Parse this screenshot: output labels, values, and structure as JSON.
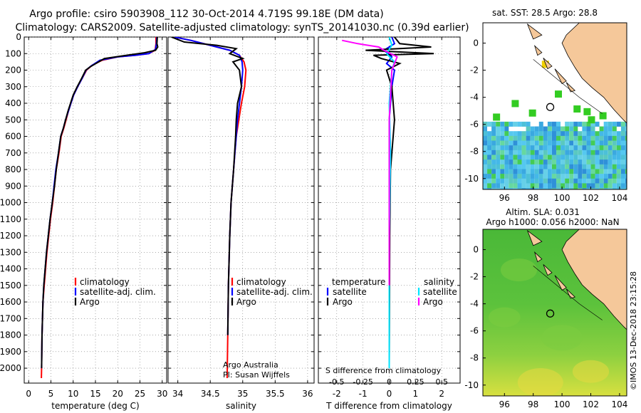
{
  "title": {
    "line1": "Argo profile: csiro 5903908_112 30-Oct-2014 4.719S 99.18E (DM data)",
    "line2": "Climatology: CARS2009. Satellite-adjusted climatology: synTS_20141030.nc (0.39d earlier)"
  },
  "credit": {
    "line1": "Argo Australia",
    "line2": "PI: Susan Wijffels",
    "footer": "©IMOS 13-Dec-2018 23:15:28"
  },
  "colors": {
    "climatology": "#ff0000",
    "satellite": "#0000ff",
    "argo": "#000000",
    "salinity_satellite": "#00e5ff",
    "salinity_argo": "#ff00ff",
    "land": "#f5c89a",
    "sea_green": "#44cc33"
  },
  "chart_data": [
    {
      "id": "temperature",
      "type": "line",
      "xlabel": "temperature (deg C)",
      "ylabel": "",
      "xlim": [
        -1,
        31
      ],
      "ylim": [
        2090,
        0
      ],
      "xticks": [
        0,
        5,
        10,
        15,
        20,
        25,
        30
      ],
      "yticks": [
        0,
        100,
        200,
        300,
        400,
        500,
        600,
        700,
        800,
        900,
        1000,
        1100,
        1200,
        1300,
        1400,
        1500,
        1600,
        1700,
        1800,
        1900,
        2000
      ],
      "legend": [
        "climatology",
        "satellite-adj. clim.",
        "Argo"
      ],
      "series": [
        {
          "name": "climatology",
          "color": "#ff0000",
          "x": [
            28.6,
            28.6,
            28.4,
            27,
            24,
            20,
            16.5,
            14.3,
            13,
            12,
            11,
            10.1,
            9.5,
            8.9,
            8.4,
            7.9,
            7.3,
            6.8,
            6.2,
            5.8,
            5.4,
            4.9,
            4.5,
            4.1,
            3.8,
            3.5,
            3.2,
            3,
            2.9,
            2.85
          ],
          "y": [
            0,
            40,
            80,
            100,
            110,
            120,
            140,
            170,
            200,
            250,
            300,
            350,
            400,
            450,
            500,
            550,
            600,
            700,
            800,
            900,
            1000,
            1100,
            1200,
            1300,
            1400,
            1500,
            1600,
            1800,
            2000,
            2060
          ]
        },
        {
          "name": "satellite-adj. clim.",
          "color": "#0000ff",
          "x": [
            28.8,
            28.7,
            28.5,
            27,
            24,
            20,
            16,
            14,
            12.9,
            12,
            11,
            10.1,
            9.5,
            8.9,
            8.3,
            7.8,
            7.2,
            6.7,
            6.1,
            5.7,
            5.3,
            4.8,
            4.4,
            4,
            3.7,
            3.4,
            3.2,
            3,
            2.9
          ],
          "y": [
            0,
            40,
            75,
            100,
            110,
            120,
            140,
            175,
            200,
            250,
            300,
            350,
            400,
            450,
            500,
            550,
            600,
            700,
            800,
            900,
            1000,
            1100,
            1200,
            1300,
            1400,
            1500,
            1600,
            1800,
            2000
          ]
        },
        {
          "name": "Argo",
          "color": "#000000",
          "x": [
            28.9,
            28.8,
            29,
            28.5,
            26,
            22,
            17,
            13.8,
            12.8,
            11.9,
            10.9,
            10,
            9.4,
            8.8,
            8.3,
            7.8,
            7.2,
            6.7,
            6.2,
            5.8,
            5.3,
            4.8,
            4.4,
            4,
            3.7,
            3.4,
            3.2,
            3,
            2.9
          ],
          "y": [
            0,
            40,
            60,
            80,
            95,
            110,
            130,
            180,
            200,
            250,
            300,
            350,
            400,
            450,
            500,
            550,
            600,
            700,
            800,
            900,
            1000,
            1100,
            1200,
            1300,
            1400,
            1500,
            1600,
            1800,
            2000
          ]
        }
      ]
    },
    {
      "id": "salinity",
      "type": "line",
      "xlabel": "salinity",
      "ylabel": "",
      "xlim": [
        33.85,
        36.1
      ],
      "ylim": [
        2090,
        0
      ],
      "xticks": [
        34,
        34.5,
        35,
        35.5,
        36
      ],
      "legend": [
        "climatology",
        "satellite-adj. clim.",
        "Argo"
      ],
      "series": [
        {
          "name": "climatology",
          "color": "#ff0000",
          "x": [
            33.95,
            34.2,
            34.5,
            34.8,
            34.95,
            35.02,
            35.05,
            35.03,
            34.98,
            34.94,
            34.9,
            34.88,
            34.86,
            34.84,
            34.82,
            34.8,
            34.78,
            34.77,
            34.76
          ],
          "y": [
            0,
            20,
            50,
            80,
            110,
            150,
            200,
            300,
            400,
            500,
            600,
            700,
            800,
            900,
            1000,
            1200,
            1500,
            1800,
            2060
          ]
        },
        {
          "name": "satellite-adj. clim.",
          "color": "#0000ff",
          "x": [
            33.95,
            34.2,
            34.5,
            34.8,
            34.95,
            34.99,
            35,
            34.98,
            34.95,
            34.92,
            34.9,
            34.88,
            34.86,
            34.84,
            34.82,
            34.8,
            34.78,
            34.77
          ],
          "y": [
            0,
            20,
            50,
            80,
            110,
            150,
            200,
            300,
            400,
            500,
            600,
            700,
            800,
            900,
            1000,
            1200,
            1500,
            1800
          ]
        },
        {
          "name": "Argo",
          "color": "#000000",
          "x": [
            33.9,
            34.1,
            34.6,
            34.9,
            34.8,
            35,
            34.85,
            34.95,
            34.98,
            34.92,
            34.9,
            34.89,
            34.86,
            34.84,
            34.82,
            34.8,
            34.78,
            34.77
          ],
          "y": [
            0,
            30,
            50,
            70,
            100,
            130,
            150,
            200,
            300,
            400,
            500,
            600,
            800,
            900,
            1000,
            1200,
            1500,
            1800
          ]
        }
      ]
    },
    {
      "id": "differences",
      "type": "line",
      "xlabel": "T difference from climatology",
      "xlabel2": "S difference from climatology",
      "xlim": [
        -2.7,
        2.7
      ],
      "ylim": [
        2090,
        0
      ],
      "xticks": [
        -2,
        -1,
        0,
        1,
        2
      ],
      "xtick_labels_S": [
        "-0.5",
        "-0.25",
        "0",
        "0.25",
        "0.5"
      ],
      "legend_temperature": {
        "title": "temperature",
        "items": [
          "satellite",
          "Argo"
        ]
      },
      "legend_salinity": {
        "title": "salinity",
        "items": [
          "satellite",
          "Argo"
        ]
      },
      "series": [
        {
          "name": "temperature satellite",
          "color": "#0000ff",
          "x": [
            0.1,
            0.2,
            -0.2,
            0.1,
            -0.1,
            0.2,
            0.1,
            0,
            0.05,
            0.02,
            0,
            0
          ],
          "y": [
            0,
            40,
            80,
            120,
            160,
            200,
            300,
            500,
            700,
            1000,
            1400,
            2000
          ]
        },
        {
          "name": "temperature Argo",
          "color": "#000000",
          "x": [
            0.2,
            0.4,
            1.6,
            -0.9,
            1.7,
            -0.6,
            -0.3,
            0.4,
            -0.1,
            0.1,
            0.2,
            0.05,
            0.02,
            0
          ],
          "y": [
            0,
            40,
            60,
            80,
            100,
            110,
            130,
            160,
            200,
            300,
            500,
            800,
            1200,
            2000
          ]
        },
        {
          "name": "salinity satellite",
          "color": "#00e5ff",
          "x": [
            0,
            0.1,
            -0.1,
            0.2,
            0.1,
            0,
            0.05,
            0,
            0
          ],
          "y": [
            0,
            50,
            100,
            150,
            200,
            400,
            700,
            1200,
            2000
          ]
        },
        {
          "name": "salinity Argo",
          "color": "#ff00ff",
          "x": [
            -1.8,
            -1.2,
            -0.4,
            -0.2,
            0.3,
            0.1,
            0,
            0
          ],
          "y": [
            20,
            40,
            60,
            80,
            120,
            200,
            500,
            1500
          ]
        }
      ]
    },
    {
      "id": "sst_map",
      "type": "heatmap",
      "title": "sat. SST: 28.5 Argo: 28.8",
      "xlim": [
        94.5,
        104.5
      ],
      "ylim": [
        -10.8,
        1.5
      ],
      "xticks": [
        96,
        98,
        100,
        102,
        104
      ],
      "yticks": [
        0,
        -2,
        -4,
        -6,
        -8,
        -10
      ],
      "argo_position": [
        99.18,
        -4.719
      ]
    },
    {
      "id": "sla_map",
      "type": "heatmap",
      "title": "Altim. SLA: 0.031",
      "title2": "Argo h1000: 0.056 h2000: NaN",
      "xlim": [
        94.5,
        104.5
      ],
      "ylim": [
        -10.8,
        1.5
      ],
      "xticks": [
        96,
        98,
        100,
        102,
        104
      ],
      "yticks": [
        0,
        -2,
        -4,
        -6,
        -8,
        -10
      ],
      "argo_position": [
        99.18,
        -4.719
      ]
    }
  ]
}
